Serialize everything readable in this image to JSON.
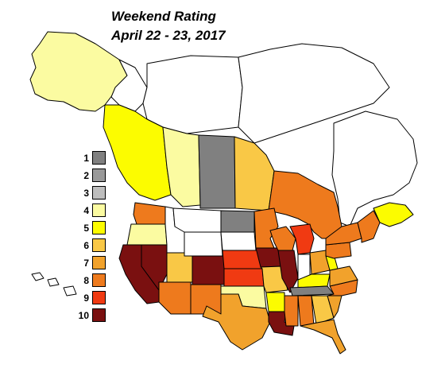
{
  "map": {
    "title_line1": "Weekend Rating",
    "title_line2": "April 22 - 23, 2017"
  },
  "legend": {
    "items": [
      {
        "label": "1",
        "color": "#808080"
      },
      {
        "label": "2",
        "color": "#999999"
      },
      {
        "label": "3",
        "color": "#bdbdbd"
      },
      {
        "label": "4",
        "color": "#fbfba1"
      },
      {
        "label": "5",
        "color": "#fcfc00"
      },
      {
        "label": "6",
        "color": "#f9c846"
      },
      {
        "label": "7",
        "color": "#f1a22c"
      },
      {
        "label": "8",
        "color": "#ee7a1d"
      },
      {
        "label": "9",
        "color": "#f03a12"
      },
      {
        "label": "10",
        "color": "#7a1010"
      }
    ]
  },
  "regions": [
    {
      "name": "alaska",
      "rating": 4
    },
    {
      "name": "yukon",
      "rating": 0
    },
    {
      "name": "nwt",
      "rating": 0
    },
    {
      "name": "nunavut",
      "rating": 0
    },
    {
      "name": "british-columbia",
      "rating": 5
    },
    {
      "name": "alberta",
      "rating": 4
    },
    {
      "name": "saskatchewan",
      "rating": 1
    },
    {
      "name": "manitoba",
      "rating": 6
    },
    {
      "name": "ontario",
      "rating": 8
    },
    {
      "name": "quebec",
      "rating": 0
    },
    {
      "name": "maritimes",
      "rating": 5
    },
    {
      "name": "washington",
      "rating": 8
    },
    {
      "name": "oregon",
      "rating": 4
    },
    {
      "name": "california",
      "rating": 10
    },
    {
      "name": "nevada",
      "rating": 10
    },
    {
      "name": "idaho",
      "rating": 0
    },
    {
      "name": "montana",
      "rating": 0
    },
    {
      "name": "wyoming",
      "rating": 0
    },
    {
      "name": "utah",
      "rating": 6
    },
    {
      "name": "arizona",
      "rating": 8
    },
    {
      "name": "colorado",
      "rating": 10
    },
    {
      "name": "new-mexico",
      "rating": 8
    },
    {
      "name": "north-dakota",
      "rating": 1
    },
    {
      "name": "south-dakota",
      "rating": 0
    },
    {
      "name": "nebraska",
      "rating": 9
    },
    {
      "name": "kansas",
      "rating": 9
    },
    {
      "name": "oklahoma",
      "rating": 4
    },
    {
      "name": "texas",
      "rating": 7
    },
    {
      "name": "minnesota",
      "rating": 8
    },
    {
      "name": "iowa",
      "rating": 10
    },
    {
      "name": "missouri",
      "rating": 6
    },
    {
      "name": "arkansas",
      "rating": 5
    },
    {
      "name": "louisiana",
      "rating": 10
    },
    {
      "name": "wisconsin",
      "rating": 8
    },
    {
      "name": "illinois",
      "rating": 10
    },
    {
      "name": "michigan",
      "rating": 9
    },
    {
      "name": "indiana",
      "rating": 0
    },
    {
      "name": "ohio",
      "rating": 7
    },
    {
      "name": "kentucky",
      "rating": 5
    },
    {
      "name": "tennessee",
      "rating": 1
    },
    {
      "name": "mississippi",
      "rating": 8
    },
    {
      "name": "alabama",
      "rating": 8
    },
    {
      "name": "georgia",
      "rating": 6
    },
    {
      "name": "florida",
      "rating": 7
    },
    {
      "name": "south-carolina",
      "rating": 7
    },
    {
      "name": "north-carolina",
      "rating": 8
    },
    {
      "name": "virginia",
      "rating": 7
    },
    {
      "name": "west-virginia",
      "rating": 5
    },
    {
      "name": "pennsylvania",
      "rating": 8
    },
    {
      "name": "new-york",
      "rating": 8
    },
    {
      "name": "new-england",
      "rating": 8
    },
    {
      "name": "hawaii",
      "rating": 0
    }
  ]
}
